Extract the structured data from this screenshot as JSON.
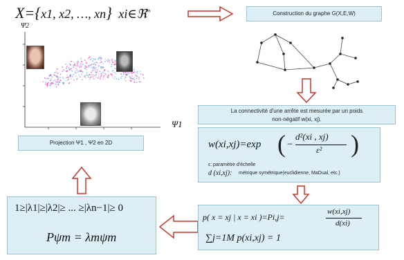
{
  "header_formula": {
    "lhs": "X={",
    "items": "x1, x2, …, xn",
    "rhs": "}",
    "cond": "xi∈ℜ",
    "sup": "m"
  },
  "graph_box": {
    "label": "Construction du graphe G(X,E,W)"
  },
  "scatter": {
    "ylabel": "Ψ2",
    "xlabel": "Ψ1"
  },
  "projection_box": {
    "label": "Projection Ψ1 , Ψ2 en 2D"
  },
  "connectivity_box": {
    "line1": "La connectivité d'une arrête est mesurée par un poids",
    "line2": "non-négatif w(xi, xj)."
  },
  "weight_box": {
    "lhs": "w(xi,xj)=exp",
    "numerator": "d²(xi , xj)",
    "denominator": "ε²",
    "epsilon_def": "ε: paramètre d'échelle",
    "metric_sym": "d (xi,xj):",
    "metric_def": "métrique symétrique(euclidienne, MaDual, etc.)"
  },
  "prob_box": {
    "lhs": "p( x = xj | x = xi )=Pi,j=",
    "frac_num": "w(xi,xj)",
    "frac_den": "d(xi)",
    "sum": "∑j=1M p(xi,xj) = 1"
  },
  "eigen_box": {
    "ineq": "1≥|λ1|≥|λ2|≥ ... ≥|λn−1|≥ 0",
    "eq": "Pψm = λmψm"
  },
  "colors": {
    "box_fill": "#dceef6",
    "box_border": "#9cc3d4",
    "arrow_fill": "#ffffff",
    "arrow_border": "#c0392b"
  }
}
